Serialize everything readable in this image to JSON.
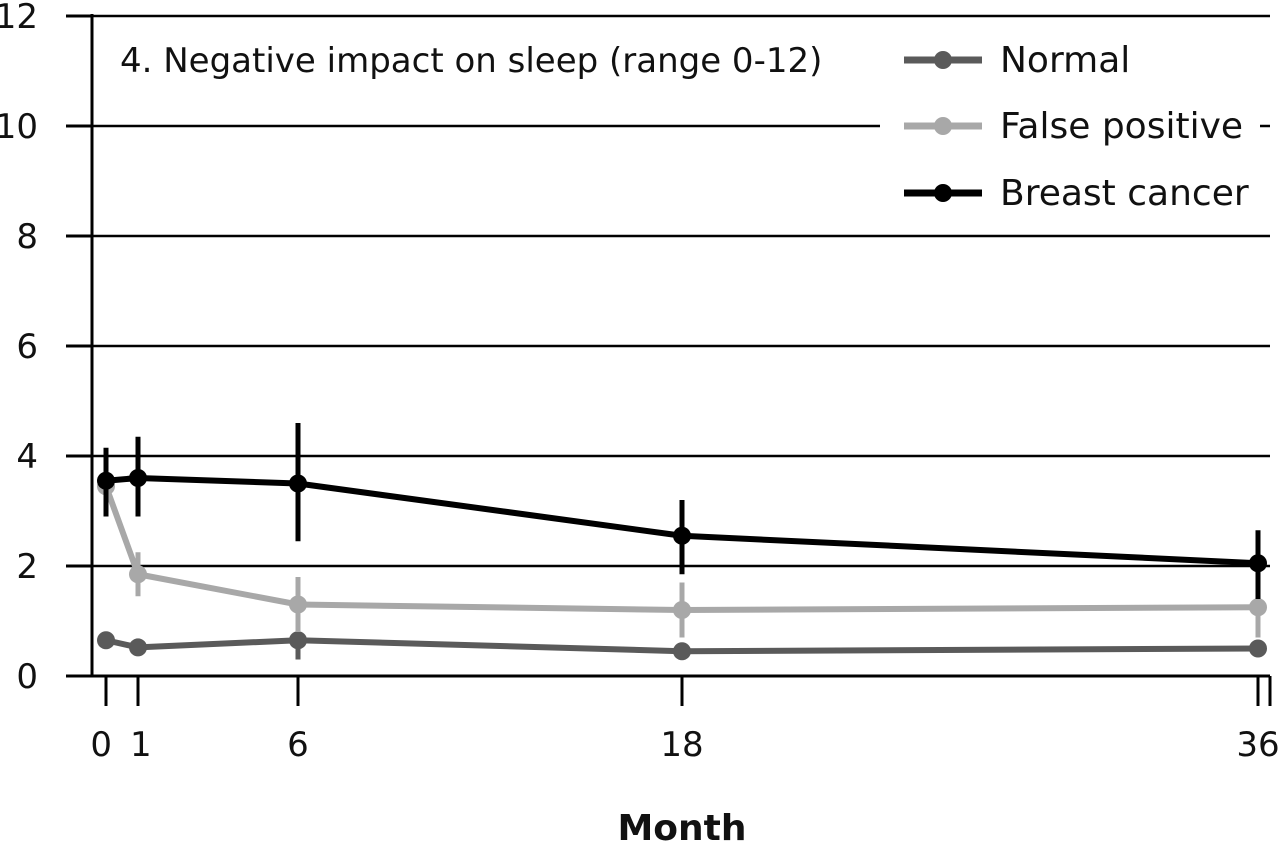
{
  "chart_data": {
    "type": "line",
    "title": "4. Negative impact on sleep (range 0-12)",
    "xlabel": "Month",
    "ylabel": "",
    "x": [
      0,
      1,
      6,
      18,
      36
    ],
    "x_tick_labels": [
      "0",
      "1",
      "6",
      "18",
      "36"
    ],
    "ylim": [
      0,
      12
    ],
    "y_ticks": [
      0,
      2,
      4,
      6,
      8,
      10,
      12
    ],
    "grid": "horizontal",
    "legend_position": "top-right",
    "series": [
      {
        "name": "Normal",
        "color": "#5a5a5a",
        "values": [
          0.65,
          0.52,
          0.65,
          0.45,
          0.5
        ],
        "error": [
          [
            0.5,
            0.8
          ],
          [
            0.42,
            0.62
          ],
          [
            0.3,
            1.0
          ],
          [
            0.35,
            0.55
          ],
          [
            0.4,
            0.6
          ]
        ]
      },
      {
        "name": "False positive",
        "color": "#a8a8a8",
        "values": [
          3.45,
          1.85,
          1.3,
          1.2,
          1.25
        ],
        "error": [
          [
            2.9,
            4.0
          ],
          [
            1.45,
            2.25
          ],
          [
            0.8,
            1.8
          ],
          [
            0.7,
            1.7
          ],
          [
            0.7,
            1.9
          ]
        ]
      },
      {
        "name": "Breast cancer",
        "color": "#000000",
        "values": [
          3.55,
          3.6,
          3.5,
          2.55,
          2.05
        ],
        "error": [
          [
            2.9,
            4.15
          ],
          [
            2.9,
            4.35
          ],
          [
            2.45,
            4.6
          ],
          [
            1.85,
            3.2
          ],
          [
            1.4,
            2.65
          ]
        ]
      }
    ]
  }
}
